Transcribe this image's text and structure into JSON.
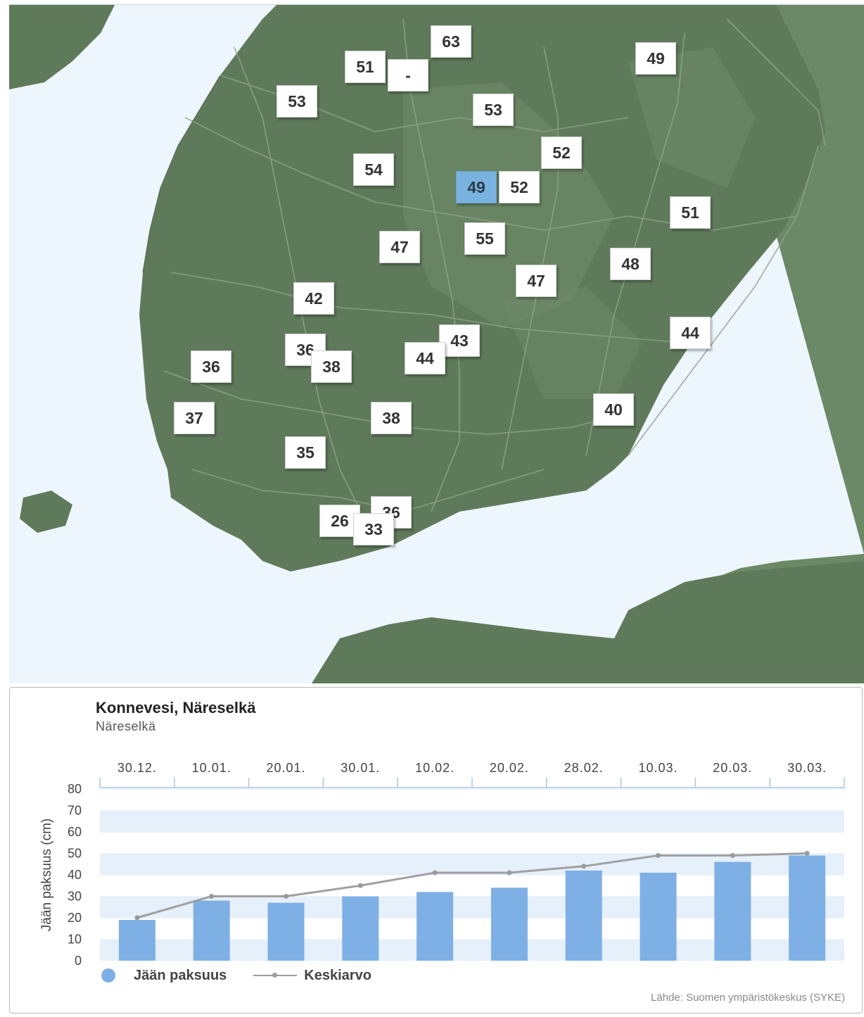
{
  "map": {
    "selected_value": "49",
    "markers": [
      {
        "label": "63"
      },
      {
        "label": "51"
      },
      {
        "label": "-"
      },
      {
        "label": "49"
      },
      {
        "label": "53"
      },
      {
        "label": "53"
      },
      {
        "label": "52"
      },
      {
        "label": "54"
      },
      {
        "label": "49"
      },
      {
        "label": "52"
      },
      {
        "label": "51"
      },
      {
        "label": "47"
      },
      {
        "label": "55"
      },
      {
        "label": "48"
      },
      {
        "label": "47"
      },
      {
        "label": "42"
      },
      {
        "label": "44"
      },
      {
        "label": "36"
      },
      {
        "label": "43"
      },
      {
        "label": "36"
      },
      {
        "label": "38"
      },
      {
        "label": "44"
      },
      {
        "label": "37"
      },
      {
        "label": "38"
      },
      {
        "label": "40"
      },
      {
        "label": "35"
      },
      {
        "label": "36"
      },
      {
        "label": "26"
      },
      {
        "label": "33"
      }
    ],
    "colors": {
      "land": "#5f7a5a",
      "water": "#eef6fd",
      "russia": "#6b8966",
      "roads": "#8fa38b",
      "selected": "#7ab2df"
    }
  },
  "panel": {
    "title": "Konnevesi, Näreselkä",
    "subtitle": "Näreselkä",
    "source": "Lähde: Suomen ympäristökeskus (SYKE)",
    "legend": {
      "bars_label": "Jään paksuus",
      "line_label": "Keskiarvo"
    }
  },
  "chart_data": {
    "type": "bar",
    "categories": [
      "30.12.",
      "10.01.",
      "20.01.",
      "30.01.",
      "10.02.",
      "20.02.",
      "28.02.",
      "10.03.",
      "20.03.",
      "30.03."
    ],
    "series": [
      {
        "name": "Jään paksuus",
        "type": "bar",
        "color": "#7eb0e6",
        "values": [
          19,
          28,
          27,
          30,
          32,
          34,
          42,
          41,
          46,
          49
        ]
      },
      {
        "name": "Keskiarvo",
        "type": "line",
        "color": "#a0a0a0",
        "values": [
          20,
          30,
          30,
          35,
          41,
          41,
          44,
          49,
          49,
          50
        ]
      }
    ],
    "ylabel": "Jään paksuus (cm)",
    "xlabel": "",
    "ylim": [
      0,
      80
    ],
    "yticks": [
      0,
      10,
      20,
      30,
      40,
      50,
      60,
      70,
      80
    ],
    "x_axis_position": "top",
    "grid": "alternating bands",
    "legend_position": "bottom-left"
  }
}
